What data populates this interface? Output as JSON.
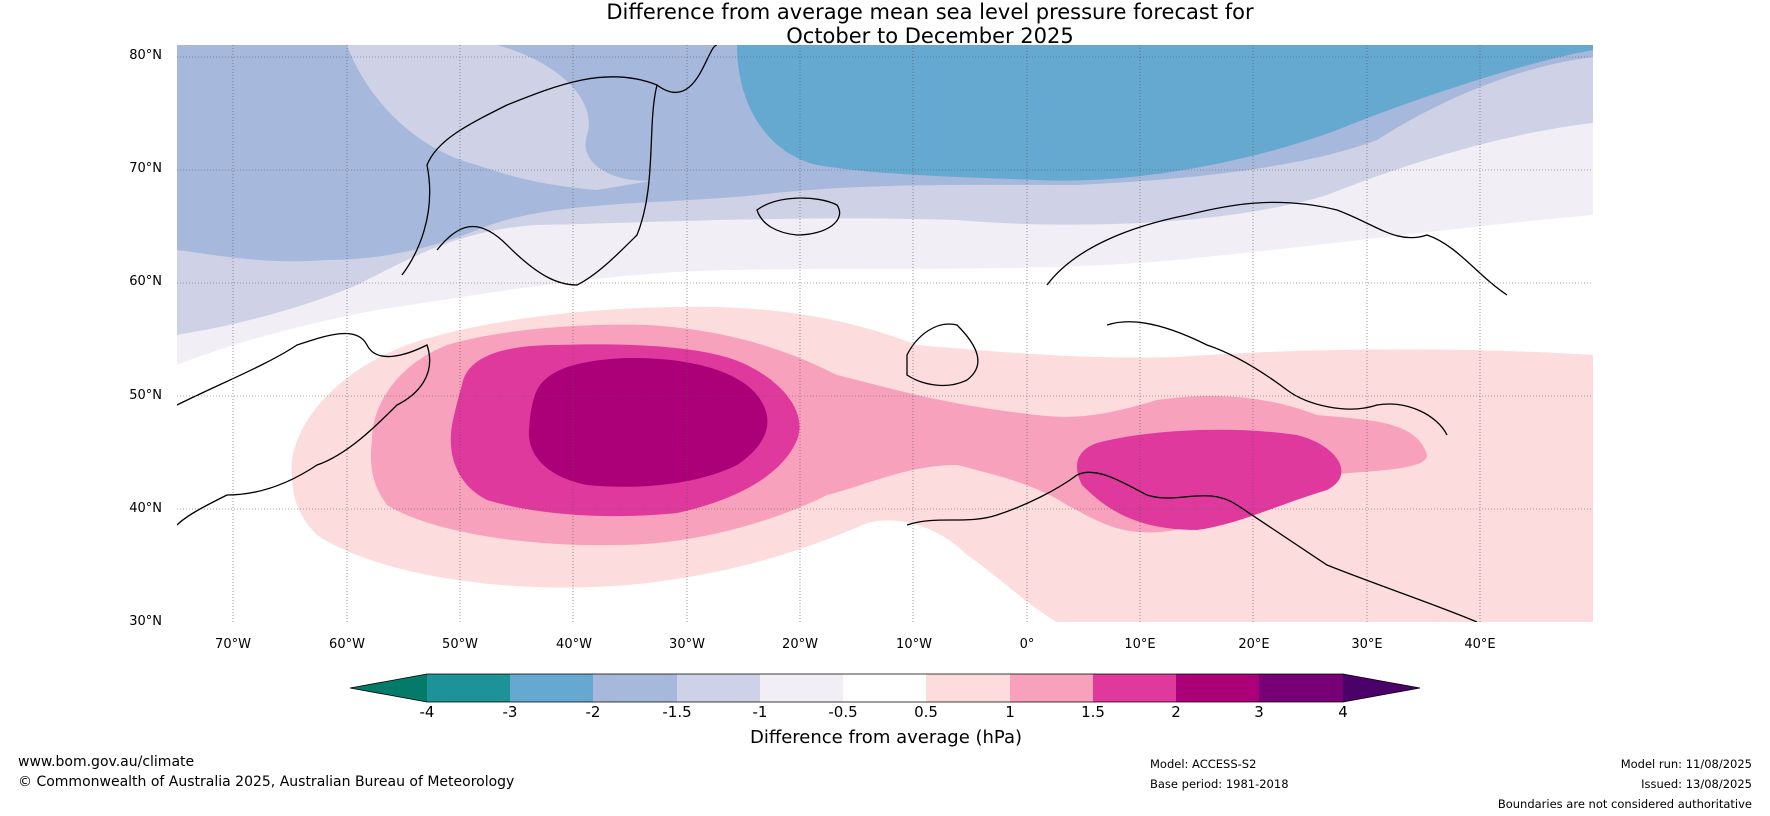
{
  "title": {
    "line1": "Difference from average mean sea level pressure forecast for",
    "line2": "October to December 2025"
  },
  "map": {
    "latitude_labels": [
      "80°N",
      "70°N",
      "60°N",
      "50°N",
      "40°N",
      "30°N"
    ],
    "longitude_labels": [
      "70°W",
      "60°W",
      "50°W",
      "40°W",
      "30°W",
      "20°W",
      "10°W",
      "0°",
      "10°E",
      "20°E",
      "30°E",
      "40°E"
    ],
    "colors": {
      "neg_lt_4": "#047a68",
      "neg_4_3": "#1d9399",
      "neg_3_2": "#65a9d1",
      "neg_2_15": "#a6b9dc",
      "neg_15_1": "#cfd1e6",
      "neg_1_05": "#f2eef5",
      "neutral": "#ffffff",
      "pos_05_1": "#fcdcdc",
      "pos_1_15": "#f8a1bd",
      "pos_15_2": "#e0399d",
      "pos_2_3": "#ac0078",
      "pos_3_4": "#780077",
      "pos_gt_4": "#4b006a"
    }
  },
  "colorbar": {
    "ticks": [
      "-4",
      "-3",
      "-2",
      "-1.5",
      "-1",
      "-0.5",
      "0.5",
      "1",
      "1.5",
      "2",
      "3",
      "4"
    ],
    "title": "Difference from average (hPa)"
  },
  "footer": {
    "website": "www.bom.gov.au/climate",
    "copyright": "© Commonwealth of Australia 2025, Australian Bureau of Meteorology",
    "model": "Model: ACCESS-S2",
    "base_period": "Base period: 1981-2018",
    "model_run": "Model run: 11/08/2025",
    "issued": "Issued: 13/08/2025",
    "disclaimer": "Boundaries are not considered authoritative"
  }
}
